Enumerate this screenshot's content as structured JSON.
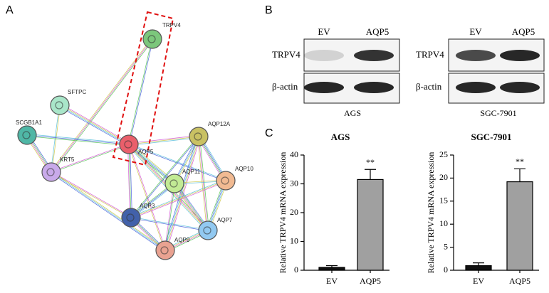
{
  "panel_a": {
    "label": "A",
    "nodes": [
      {
        "label": "TRPV4",
        "color": "#7cc77c"
      },
      {
        "label": "SFTPC",
        "color": "#a9e6c9"
      },
      {
        "label": "SCGB1A1",
        "color": "#4fb7a6"
      },
      {
        "label": "AQP5",
        "color": "#ea5f6b"
      },
      {
        "label": "AQP12A",
        "color": "#c9c163"
      },
      {
        "label": "KRT5",
        "color": "#c9aaea"
      },
      {
        "label": "AQP11",
        "color": "#c2ea94"
      },
      {
        "label": "AQP10",
        "color": "#f1ba92"
      },
      {
        "label": "AQP3",
        "color": "#4261aa"
      },
      {
        "label": "AQP7",
        "color": "#92c9f1"
      },
      {
        "label": "AQP9",
        "color": "#e9a291"
      }
    ]
  },
  "panel_b": {
    "label": "B",
    "blots": [
      {
        "lanes": [
          "EV",
          "AQP5"
        ],
        "rows": [
          "TRPV4",
          "β-actin"
        ],
        "cell_line": "AGS"
      },
      {
        "lanes": [
          "EV",
          "AQP5"
        ],
        "rows": [
          "TRPV4",
          "β-actin"
        ],
        "cell_line": "SGC-7901"
      }
    ]
  },
  "panel_c": {
    "label": "C"
  },
  "chart_data": [
    {
      "type": "bar",
      "title": "AGS",
      "y_label": "Relative TRPV4 mRNA expression",
      "categories": [
        "EV",
        "AQP5"
      ],
      "values": [
        1,
        31.5
      ],
      "errors": [
        0.6,
        3.5
      ],
      "colors": [
        "#111111",
        "#a0a0a0"
      ],
      "annotation": "**",
      "ylim": [
        0,
        40
      ],
      "yticks": [
        0,
        10,
        20,
        30,
        40
      ]
    },
    {
      "type": "bar",
      "title": "SGC-7901",
      "y_label": "Relative TRPV4 mRNA expression",
      "categories": [
        "EV",
        "AQP5"
      ],
      "values": [
        1,
        19.2
      ],
      "errors": [
        0.6,
        2.8
      ],
      "colors": [
        "#111111",
        "#a0a0a0"
      ],
      "annotation": "**",
      "ylim": [
        0,
        25
      ],
      "yticks": [
        0,
        5,
        10,
        15,
        20,
        25
      ]
    }
  ]
}
